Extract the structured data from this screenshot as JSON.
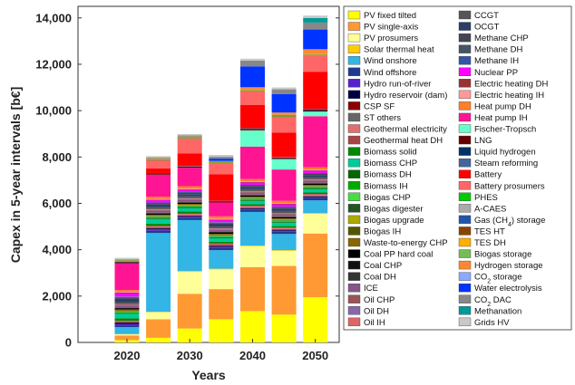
{
  "chart_data": {
    "type": "bar",
    "stacked": true,
    "title": "",
    "xlabel": "Years",
    "ylabel": "Capex in 5-year intervals [b€]",
    "categories": [
      "2020",
      "2030",
      "2040",
      "2050"
    ],
    "x": [
      2020,
      2025,
      2030,
      2035,
      2040,
      2045,
      2050
    ],
    "ylim": [
      0,
      14500
    ],
    "yticks": [
      0,
      2000,
      4000,
      6000,
      8000,
      10000,
      12000,
      14000
    ],
    "ytick_labels": [
      "0",
      "2,000",
      "4,000",
      "6,000",
      "8,000",
      "10,000",
      "12,000",
      "14,000"
    ],
    "grid": false,
    "legend_position": "right",
    "series": [
      {
        "name": "PV fixed tilted",
        "color": "#ffff00",
        "values": [
          100,
          200,
          600,
          1000,
          1350,
          1200,
          1950
        ]
      },
      {
        "name": "PV single-axis",
        "color": "#ff9933",
        "values": [
          200,
          800,
          1500,
          1300,
          1900,
          2100,
          2750
        ]
      },
      {
        "name": "PV prosumers",
        "color": "#ffff99",
        "values": [
          50,
          300,
          950,
          850,
          900,
          650,
          850
        ]
      },
      {
        "name": "Solar thermal heat",
        "color": "#ffcc00",
        "values": [
          10,
          20,
          30,
          30,
          30,
          30,
          30
        ]
      },
      {
        "name": "Wind onshore",
        "color": "#33b5e5",
        "values": [
          300,
          3400,
          2200,
          800,
          1450,
          700,
          550
        ]
      },
      {
        "name": "Wind offshore",
        "color": "#1f3a8f",
        "values": [
          80,
          100,
          100,
          100,
          90,
          100,
          100
        ]
      },
      {
        "name": "Hydro run-of-river",
        "color": "#5522cc",
        "values": [
          60,
          60,
          50,
          50,
          40,
          40,
          40
        ]
      },
      {
        "name": "Hydro reservoir (dam)",
        "color": "#000044",
        "values": [
          40,
          40,
          30,
          30,
          30,
          30,
          30
        ]
      },
      {
        "name": "CSP SF",
        "color": "#8b0000",
        "values": [
          20,
          20,
          20,
          20,
          20,
          20,
          20
        ]
      },
      {
        "name": "ST others",
        "color": "#666666",
        "values": [
          20,
          20,
          20,
          20,
          20,
          20,
          20
        ]
      },
      {
        "name": "Geothermal electricity",
        "color": "#e07070",
        "values": [
          30,
          40,
          40,
          40,
          40,
          40,
          40
        ]
      },
      {
        "name": "Geothermal heat DH",
        "color": "#aa4444",
        "values": [
          30,
          30,
          30,
          30,
          30,
          30,
          30
        ]
      },
      {
        "name": "Biomass solid",
        "color": "#008800",
        "values": [
          100,
          100,
          80,
          80,
          60,
          60,
          60
        ]
      },
      {
        "name": "Biomass CHP",
        "color": "#00cc99",
        "values": [
          200,
          200,
          150,
          150,
          150,
          150,
          150
        ]
      },
      {
        "name": "Biomass DH",
        "color": "#006600",
        "values": [
          40,
          40,
          40,
          40,
          40,
          40,
          40
        ]
      },
      {
        "name": "Biomass IH",
        "color": "#00aa00",
        "values": [
          20,
          20,
          20,
          20,
          20,
          20,
          20
        ]
      },
      {
        "name": "Biogas CHP",
        "color": "#44dd44",
        "values": [
          30,
          30,
          30,
          30,
          30,
          30,
          30
        ]
      },
      {
        "name": "Biogas digester",
        "color": "#225522",
        "values": [
          20,
          20,
          20,
          20,
          20,
          20,
          20
        ]
      },
      {
        "name": "Biogas upgrade",
        "color": "#aaaa00",
        "values": [
          20,
          20,
          20,
          20,
          20,
          20,
          20
        ]
      },
      {
        "name": "Biogas IH",
        "color": "#555500",
        "values": [
          10,
          10,
          10,
          10,
          10,
          10,
          10
        ]
      },
      {
        "name": "Waste-to-energy CHP",
        "color": "#886600",
        "values": [
          40,
          40,
          40,
          40,
          40,
          40,
          40
        ]
      },
      {
        "name": "Coal PP hard coal",
        "color": "#000000",
        "values": [
          50,
          50,
          50,
          50,
          50,
          50,
          50
        ]
      },
      {
        "name": "Coal CHP",
        "color": "#111111",
        "values": [
          20,
          20,
          20,
          20,
          20,
          20,
          20
        ]
      },
      {
        "name": "Coal DH",
        "color": "#333333",
        "values": [
          20,
          20,
          20,
          20,
          20,
          20,
          20
        ]
      },
      {
        "name": "ICE",
        "color": "#885588",
        "values": [
          80,
          80,
          80,
          80,
          80,
          80,
          80
        ]
      },
      {
        "name": "Oil CHP",
        "color": "#995555",
        "values": [
          30,
          30,
          30,
          30,
          30,
          30,
          30
        ]
      },
      {
        "name": "Oil DH",
        "color": "#8866aa",
        "values": [
          20,
          20,
          20,
          20,
          20,
          20,
          20
        ]
      },
      {
        "name": "Oil IH",
        "color": "#dd6666",
        "values": [
          20,
          20,
          20,
          20,
          20,
          20,
          20
        ]
      },
      {
        "name": "CCGT",
        "color": "#555555",
        "values": [
          80,
          80,
          80,
          80,
          80,
          80,
          80
        ]
      },
      {
        "name": "OCGT",
        "color": "#2b3e66",
        "values": [
          150,
          120,
          100,
          100,
          100,
          100,
          100
        ]
      },
      {
        "name": "Methane CHP",
        "color": "#444455",
        "values": [
          50,
          50,
          50,
          50,
          50,
          50,
          50
        ]
      },
      {
        "name": "Methane DH",
        "color": "#445566",
        "values": [
          20,
          20,
          20,
          20,
          20,
          20,
          20
        ]
      },
      {
        "name": "Methane IH",
        "color": "#3355aa",
        "values": [
          20,
          20,
          20,
          20,
          20,
          20,
          20
        ]
      },
      {
        "name": "Nuclear PP",
        "color": "#ff00ff",
        "values": [
          150,
          100,
          100,
          100,
          100,
          100,
          100
        ]
      },
      {
        "name": "Electric heating DH",
        "color": "#993333",
        "values": [
          20,
          20,
          20,
          20,
          20,
          20,
          20
        ]
      },
      {
        "name": "Electric heating IH",
        "color": "#ff9999",
        "values": [
          30,
          30,
          30,
          30,
          30,
          30,
          30
        ]
      },
      {
        "name": "Heat pump DH",
        "color": "#ff7f27",
        "values": [
          80,
          100,
          100,
          100,
          100,
          100,
          100
        ]
      },
      {
        "name": "Heat pump IH",
        "color": "#ff1493",
        "values": [
          1150,
          950,
          800,
          600,
          1400,
          1350,
          2200
        ]
      },
      {
        "name": "Fischer-Tropsch",
        "color": "#66ffcc",
        "values": [
          0,
          0,
          0,
          0,
          700,
          450,
          200
        ]
      },
      {
        "name": "LNG",
        "color": "#660000",
        "values": [
          50,
          50,
          50,
          50,
          50,
          50,
          50
        ]
      },
      {
        "name": "Liquid hydrogen",
        "color": "#003366",
        "values": [
          0,
          0,
          0,
          0,
          20,
          20,
          50
        ]
      },
      {
        "name": "Steam reforming",
        "color": "#446699",
        "values": [
          20,
          20,
          20,
          20,
          20,
          20,
          20
        ]
      },
      {
        "name": "Battery",
        "color": "#ff0000",
        "values": [
          0,
          200,
          550,
          1150,
          1000,
          1050,
          1600
        ]
      },
      {
        "name": "Battery prosumers",
        "color": "#ff6666",
        "values": [
          50,
          350,
          650,
          500,
          600,
          700,
          700
        ]
      },
      {
        "name": "PHES",
        "color": "#00cc00",
        "values": [
          20,
          20,
          20,
          20,
          20,
          20,
          20
        ]
      },
      {
        "name": "A-CAES",
        "color": "#aaaaaa",
        "values": [
          0,
          0,
          0,
          0,
          0,
          0,
          0
        ]
      },
      {
        "name": "Gas (CH4) storage",
        "color": "#2255aa",
        "values": [
          0,
          0,
          0,
          0,
          0,
          0,
          0
        ]
      },
      {
        "name": "TES HT",
        "color": "#884400",
        "values": [
          20,
          20,
          20,
          20,
          20,
          20,
          20
        ]
      },
      {
        "name": "TES DH",
        "color": "#ffb000",
        "values": [
          20,
          20,
          20,
          20,
          20,
          20,
          20
        ]
      },
      {
        "name": "Biogas storage",
        "color": "#77bb55",
        "values": [
          10,
          10,
          10,
          10,
          10,
          10,
          10
        ]
      },
      {
        "name": "Hydrogen storage",
        "color": "#ff8833",
        "values": [
          0,
          0,
          0,
          0,
          100,
          100,
          200
        ]
      },
      {
        "name": "CO2 storage",
        "color": "#88aaff",
        "values": [
          0,
          0,
          0,
          0,
          0,
          0,
          0
        ]
      },
      {
        "name": "Water electrolysis",
        "color": "#0033ff",
        "values": [
          0,
          0,
          0,
          100,
          900,
          800,
          850
        ]
      },
      {
        "name": "CO2 DAC",
        "color": "#888888",
        "values": [
          0,
          50,
          50,
          80,
          250,
          200,
          300
        ]
      },
      {
        "name": "Methanation",
        "color": "#009999",
        "values": [
          0,
          0,
          0,
          0,
          0,
          0,
          200
        ]
      },
      {
        "name": "Grids HV",
        "color": "#c8c8c8",
        "values": [
          50,
          60,
          60,
          80,
          80,
          80,
          100
        ]
      }
    ]
  }
}
